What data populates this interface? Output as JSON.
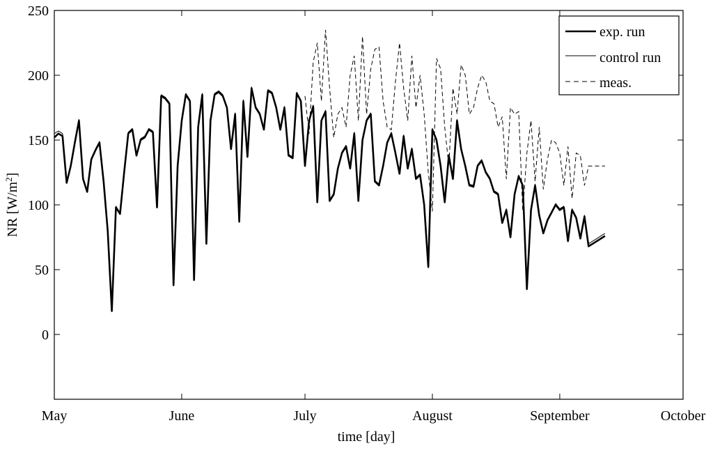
{
  "chart_data": {
    "type": "line",
    "title": "",
    "xlabel": "time [day]",
    "ylabel_main": "NR [W/m",
    "ylabel_sup": "2",
    "ylabel_close": "]",
    "xlim": [
      0,
      153
    ],
    "ylim": [
      -50,
      250
    ],
    "yticks": [
      0,
      50,
      100,
      150,
      200,
      250
    ],
    "xticks": [
      {
        "value": 0,
        "label": "May"
      },
      {
        "value": 31,
        "label": "June"
      },
      {
        "value": 61,
        "label": "July"
      },
      {
        "value": 92,
        "label": "August"
      },
      {
        "value": 123,
        "label": "September"
      },
      {
        "value": 153,
        "label": "October"
      }
    ],
    "legend_position": "top-right",
    "series": [
      {
        "name": "exp. run",
        "style": "thick",
        "x": [
          0,
          1,
          2,
          3,
          4,
          5,
          6,
          7,
          8,
          9,
          10,
          11,
          12,
          13,
          14,
          15,
          16,
          17,
          18,
          19,
          20,
          21,
          22,
          23,
          24,
          25,
          26,
          27,
          28,
          29,
          30,
          31,
          32,
          33,
          34,
          35,
          36,
          37,
          38,
          39,
          40,
          41,
          42,
          43,
          44,
          45,
          46,
          47,
          48,
          49,
          50,
          51,
          52,
          53,
          54,
          55,
          56,
          57,
          58,
          59,
          60,
          61,
          62,
          63,
          64,
          65,
          66,
          67,
          68,
          69,
          70,
          71,
          72,
          73,
          74,
          75,
          76,
          77,
          78,
          79,
          80,
          81,
          82,
          83,
          84,
          85,
          86,
          87,
          88,
          89,
          90,
          91,
          92,
          93,
          94,
          95,
          96,
          97,
          98,
          99,
          100,
          101,
          102,
          103,
          104,
          105,
          106,
          107,
          108,
          109,
          110,
          111,
          112,
          113,
          114,
          115,
          116,
          117,
          118,
          119,
          120,
          121,
          122,
          123,
          124,
          125,
          126,
          127,
          128,
          129,
          130,
          131,
          132,
          133,
          134
        ],
        "values": [
          152,
          155,
          153,
          117,
          130,
          148,
          165,
          120,
          110,
          135,
          142,
          148,
          118,
          80,
          18,
          98,
          93,
          125,
          155,
          158,
          138,
          150,
          152,
          158,
          156,
          98,
          184,
          182,
          178,
          38,
          130,
          165,
          185,
          180,
          42,
          160,
          185,
          70,
          165,
          185,
          187,
          184,
          175,
          143,
          170,
          87,
          180,
          137,
          190,
          175,
          170,
          158,
          188,
          186,
          175,
          158,
          175,
          138,
          136,
          186,
          180,
          130,
          165,
          176,
          102,
          165,
          172,
          103,
          108,
          128,
          140,
          145,
          128,
          155,
          103,
          150,
          165,
          170,
          118,
          115,
          130,
          148,
          155,
          140,
          124,
          153,
          128,
          143,
          120,
          123,
          100,
          52,
          158,
          150,
          130,
          102,
          138,
          120,
          165,
          143,
          130,
          115,
          114,
          130,
          134,
          125,
          120,
          110,
          108,
          86,
          96,
          75,
          108,
          122,
          115,
          35,
          96,
          115,
          92,
          78,
          88,
          94,
          100,
          96,
          98,
          72,
          96,
          90,
          74,
          91,
          68,
          70,
          72,
          74,
          76
        ],
        "end_index": 134
      },
      {
        "name": "control run",
        "style": "thin",
        "x": [
          0,
          1,
          2,
          3,
          4,
          5,
          6,
          7,
          8,
          9,
          10,
          11,
          12,
          13,
          14,
          15,
          16,
          17,
          18,
          19,
          20,
          21,
          22,
          23,
          24,
          25,
          26,
          27,
          28,
          29,
          30,
          31,
          32,
          33,
          34,
          35,
          36,
          37,
          38,
          39,
          40,
          41,
          42,
          43,
          44,
          45,
          46,
          47,
          48,
          49,
          50,
          51,
          52,
          53,
          54,
          55,
          56,
          57,
          58,
          59,
          60,
          61,
          62,
          63,
          64,
          65,
          66,
          67,
          68,
          69,
          70,
          71,
          72,
          73,
          74,
          75,
          76,
          77,
          78,
          79,
          80,
          81,
          82,
          83,
          84,
          85,
          86,
          87,
          88,
          89,
          90,
          91,
          92,
          93,
          94,
          95,
          96,
          97,
          98,
          99,
          100,
          101,
          102,
          103,
          104,
          105,
          106,
          107,
          108,
          109,
          110,
          111,
          112,
          113,
          114,
          115,
          116,
          117,
          118,
          119,
          120,
          121,
          122,
          123,
          124,
          125,
          126,
          127,
          128,
          129,
          130,
          131,
          132,
          133,
          134
        ],
        "values": [
          155,
          157,
          155,
          118,
          131,
          150,
          166,
          121,
          111,
          136,
          143,
          149,
          119,
          82,
          20,
          99,
          94,
          126,
          156,
          159,
          139,
          151,
          153,
          159,
          157,
          99,
          185,
          183,
          179,
          40,
          131,
          166,
          186,
          181,
          44,
          161,
          186,
          72,
          166,
          186,
          188,
          185,
          176,
          144,
          171,
          88,
          181,
          138,
          191,
          176,
          171,
          159,
          189,
          187,
          176,
          159,
          176,
          139,
          137,
          187,
          181,
          131,
          166,
          177,
          103,
          166,
          173,
          104,
          109,
          129,
          141,
          146,
          129,
          156,
          104,
          151,
          166,
          171,
          119,
          116,
          131,
          149,
          156,
          141,
          125,
          154,
          129,
          144,
          121,
          124,
          101,
          54,
          159,
          151,
          131,
          103,
          139,
          121,
          166,
          144,
          131,
          116,
          115,
          131,
          135,
          126,
          121,
          111,
          109,
          87,
          97,
          77,
          109,
          123,
          116,
          37,
          97,
          116,
          93,
          79,
          89,
          95,
          101,
          97,
          99,
          74,
          97,
          91,
          76,
          92,
          70,
          72,
          74,
          76,
          78
        ]
      },
      {
        "name": "meas.",
        "style": "dashed",
        "x": [
          61,
          62,
          63,
          64,
          65,
          66,
          67,
          68,
          69,
          70,
          71,
          72,
          73,
          74,
          75,
          76,
          77,
          78,
          79,
          80,
          81,
          82,
          83,
          84,
          85,
          86,
          87,
          88,
          89,
          90,
          91,
          92,
          93,
          94,
          95,
          96,
          97,
          98,
          99,
          100,
          101,
          102,
          103,
          104,
          105,
          106,
          107,
          108,
          109,
          110,
          111,
          112,
          113,
          114,
          115,
          116,
          117,
          118,
          119,
          120,
          121,
          122,
          123,
          124,
          125,
          126,
          127,
          128,
          129,
          130,
          131,
          132,
          133,
          134
        ],
        "values": [
          184,
          155,
          210,
          225,
          180,
          235,
          190,
          152,
          170,
          175,
          160,
          200,
          215,
          165,
          230,
          170,
          205,
          220,
          222,
          180,
          160,
          158,
          195,
          225,
          190,
          165,
          215,
          175,
          200,
          170,
          125,
          95,
          213,
          205,
          160,
          130,
          190,
          170,
          208,
          200,
          170,
          175,
          190,
          200,
          195,
          180,
          178,
          160,
          168,
          120,
          175,
          170,
          172,
          95,
          140,
          165,
          118,
          160,
          112,
          135,
          150,
          148,
          140,
          115,
          145,
          105,
          140,
          138,
          115,
          130,
          130,
          130,
          130,
          130
        ]
      }
    ]
  }
}
